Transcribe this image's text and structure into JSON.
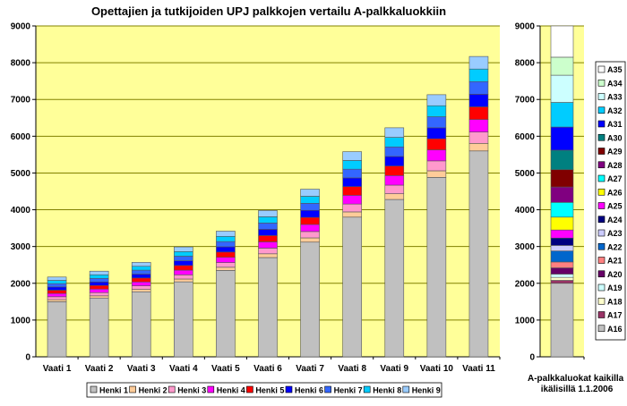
{
  "chart_data": [
    {
      "type": "bar",
      "stacked": true,
      "title": "Opettajien ja tutkijoiden UPJ palkkojen vertailu A-palkkaluokkiin",
      "xlabel": "",
      "ylabel": "",
      "ylim": [
        0,
        9000
      ],
      "yticks": [
        "0",
        "1000",
        "2000",
        "3000",
        "4000",
        "5000",
        "6000",
        "7000",
        "8000",
        "9000"
      ],
      "grid": true,
      "legend_position": "bottom",
      "categories": [
        "Vaati 1",
        "Vaati 2",
        "Vaati 3",
        "Vaati 4",
        "Vaati 5",
        "Vaati 6",
        "Vaati 7",
        "Vaati 8",
        "Vaati 9",
        "Vaati 10",
        "Vaati 11"
      ],
      "series": [
        {
          "name": "Henki 1",
          "color": "#c0c0c0",
          "values": [
            1500,
            1600,
            1770,
            2040,
            2350,
            2700,
            3120,
            3800,
            4280,
            4880,
            5600
          ]
        },
        {
          "name": "Henki 2",
          "color": "#ffcc99",
          "values": [
            54,
            58,
            64,
            76,
            86,
            102,
            115,
            142,
            156,
            180,
            206
          ]
        },
        {
          "name": "Henki 3",
          "color": "#ff99cc",
          "values": [
            80,
            88,
            96,
            114,
            128,
            154,
            173,
            214,
            234,
            270,
            308
          ]
        },
        {
          "name": "Henki 4",
          "color": "#ff00ff",
          "values": [
            89,
            97,
            107,
            127,
            143,
            171,
            192,
            237,
            260,
            300,
            343
          ]
        },
        {
          "name": "Henki 5",
          "color": "#ff0000",
          "values": [
            89,
            97,
            107,
            127,
            143,
            171,
            192,
            237,
            260,
            300,
            343
          ]
        },
        {
          "name": "Henki 6",
          "color": "#0000ff",
          "values": [
            89,
            97,
            107,
            127,
            143,
            171,
            192,
            237,
            260,
            300,
            343
          ]
        },
        {
          "name": "Henki 7",
          "color": "#3366ff",
          "values": [
            89,
            97,
            106,
            126,
            142,
            171,
            192,
            237,
            260,
            300,
            343
          ]
        },
        {
          "name": "Henki 8",
          "color": "#00ccff",
          "values": [
            90,
            98,
            106,
            126,
            142,
            170,
            192,
            238,
            260,
            300,
            342
          ]
        },
        {
          "name": "Henki 9",
          "color": "#99ccff",
          "values": [
            90,
            98,
            106,
            126,
            142,
            170,
            192,
            238,
            260,
            300,
            342
          ]
        }
      ]
    },
    {
      "type": "bar",
      "stacked": true,
      "title": "",
      "xlabel": "A-palkkaluokat kaikilla ikälisillä 1.1.2006",
      "ylim": [
        0,
        9000
      ],
      "yticks": [
        "0",
        "1000",
        "2000",
        "3000",
        "4000",
        "5000",
        "6000",
        "7000",
        "8000",
        "9000"
      ],
      "grid": true,
      "legend_position": "right",
      "categories": [
        ""
      ],
      "series": [
        {
          "name": "A16",
          "color": "#c0c0c0",
          "values": [
            2000
          ]
        },
        {
          "name": "A17",
          "color": "#993366",
          "values": [
            80
          ]
        },
        {
          "name": "A18",
          "color": "#ffffcc",
          "values": [
            80
          ]
        },
        {
          "name": "A19",
          "color": "#ccffff",
          "values": [
            90
          ]
        },
        {
          "name": "A20",
          "color": "#660066",
          "values": [
            170
          ]
        },
        {
          "name": "A21",
          "color": "#ff8080",
          "values": [
            160
          ]
        },
        {
          "name": "A22",
          "color": "#0066cc",
          "values": [
            300
          ]
        },
        {
          "name": "A23",
          "color": "#ccccff",
          "values": [
            150
          ]
        },
        {
          "name": "A24",
          "color": "#000080",
          "values": [
            200
          ]
        },
        {
          "name": "A25",
          "color": "#ff00ff",
          "values": [
            220
          ]
        },
        {
          "name": "A26",
          "color": "#ffff00",
          "values": [
            350
          ]
        },
        {
          "name": "A27",
          "color": "#00ffff",
          "values": [
            400
          ]
        },
        {
          "name": "A28",
          "color": "#800080",
          "values": [
            420
          ]
        },
        {
          "name": "A29",
          "color": "#800000",
          "values": [
            470
          ]
        },
        {
          "name": "A30",
          "color": "#008080",
          "values": [
            530
          ]
        },
        {
          "name": "A31",
          "color": "#0000ff",
          "values": [
            630
          ]
        },
        {
          "name": "A32",
          "color": "#00ccff",
          "values": [
            670
          ]
        },
        {
          "name": "A33",
          "color": "#ccffff",
          "values": [
            740
          ]
        },
        {
          "name": "A34",
          "color": "#ccffcc",
          "values": [
            490
          ]
        },
        {
          "name": "A35",
          "color": "#ffffff",
          "values": [
            850
          ]
        }
      ]
    }
  ],
  "colors": {
    "plot_bg": "#ffff99",
    "grid": "#808000"
  }
}
